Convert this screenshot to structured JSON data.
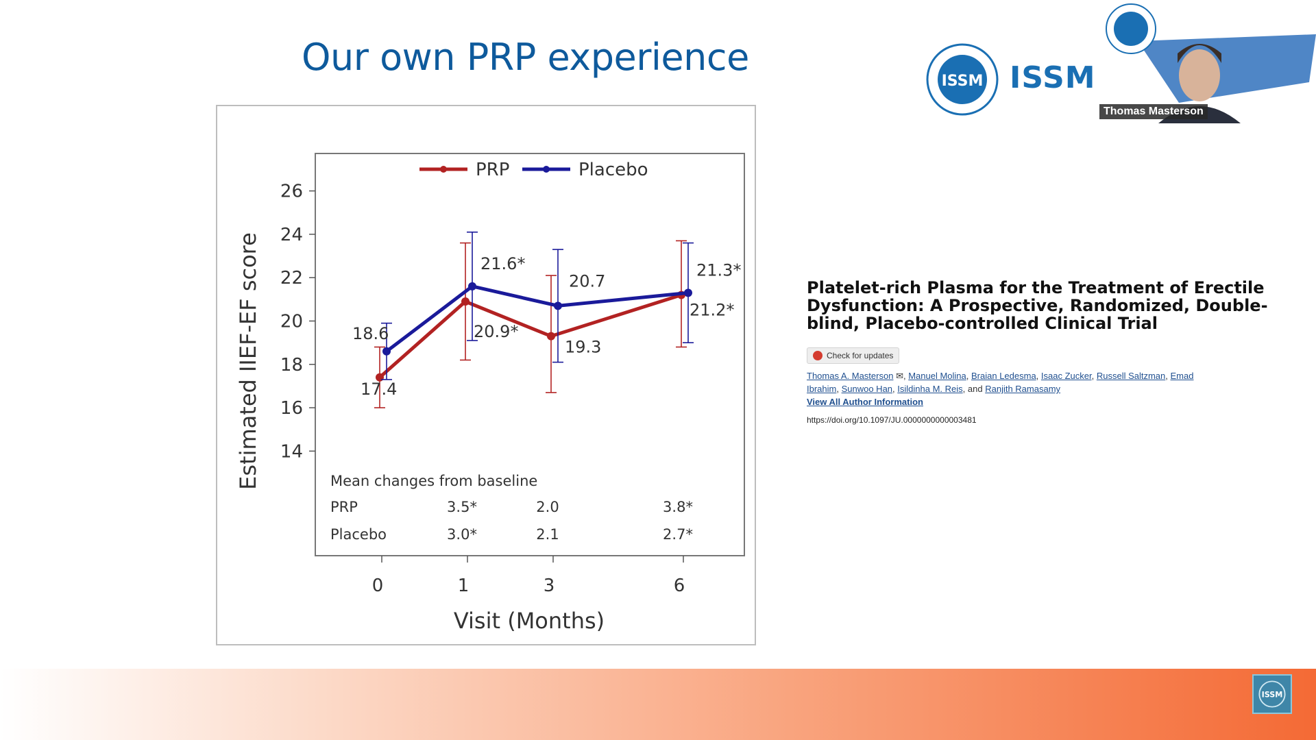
{
  "slide": {
    "title": "Our own PRP experience"
  },
  "branding": {
    "issm_word": "ISSM W",
    "logo_letters": "ISSM",
    "logo_ring_text": "INTERNATIONAL SOCIETY FOR SEXUAL MEDICINE"
  },
  "video": {
    "speaker": "Thomas Masterson"
  },
  "paper": {
    "title": "Platelet-rich Plasma for the Treatment of Erectile Dysfunction: A Prospective, Randomized, Double-blind, Placebo-controlled Clinical Trial",
    "check_updates": "Check for updates",
    "authors": [
      "Thomas A. Masterson",
      "Manuel Molina",
      "Braian Ledesma",
      "Isaac Zucker",
      "Russell Saltzman",
      "Emad Ibrahim",
      "Sunwoo Han",
      "Isildinha M. Reis",
      "Ranjith Ramasamy"
    ],
    "and_word": "and",
    "view_all": "View All Author Information",
    "doi": "https://doi.org/10.1097/JU.0000000000003481"
  },
  "chart_data": {
    "type": "line",
    "xlabel": "Visit (Months)",
    "ylabel": "Estimated IIEF-EF score",
    "x": [
      0,
      1,
      3,
      6
    ],
    "x_tick_labels": [
      "0",
      "1",
      "3",
      "6"
    ],
    "ylim": [
      13,
      27
    ],
    "y_ticks": [
      14,
      16,
      18,
      20,
      22,
      24,
      26
    ],
    "legend_position": "top",
    "series": [
      {
        "name": "PRP",
        "color": "#b22222",
        "values": [
          17.4,
          20.9,
          19.3,
          21.2
        ],
        "error_low": [
          16.0,
          18.2,
          16.7,
          18.8
        ],
        "error_high": [
          18.8,
          23.6,
          22.1,
          23.7
        ],
        "labels": [
          "17.4",
          "20.9*",
          "19.3",
          "21.2*"
        ]
      },
      {
        "name": "Placebo",
        "color": "#1a1a9a",
        "values": [
          18.6,
          21.6,
          20.7,
          21.3
        ],
        "error_low": [
          17.3,
          19.1,
          18.1,
          19.0
        ],
        "error_high": [
          19.9,
          24.1,
          23.3,
          23.6
        ],
        "labels": [
          "18.6",
          "21.6*",
          "20.7",
          "21.3*"
        ]
      }
    ],
    "table": {
      "heading": "Mean changes from baseline",
      "rows": [
        {
          "label": "PRP",
          "values": [
            "3.5*",
            "2.0",
            "3.8*"
          ]
        },
        {
          "label": "Placebo",
          "values": [
            "3.0*",
            "2.1",
            "2.7*"
          ]
        }
      ]
    }
  },
  "colors": {
    "title": "#0e5a9c",
    "link": "#1f4f8f",
    "band_end": "#f46a35"
  }
}
